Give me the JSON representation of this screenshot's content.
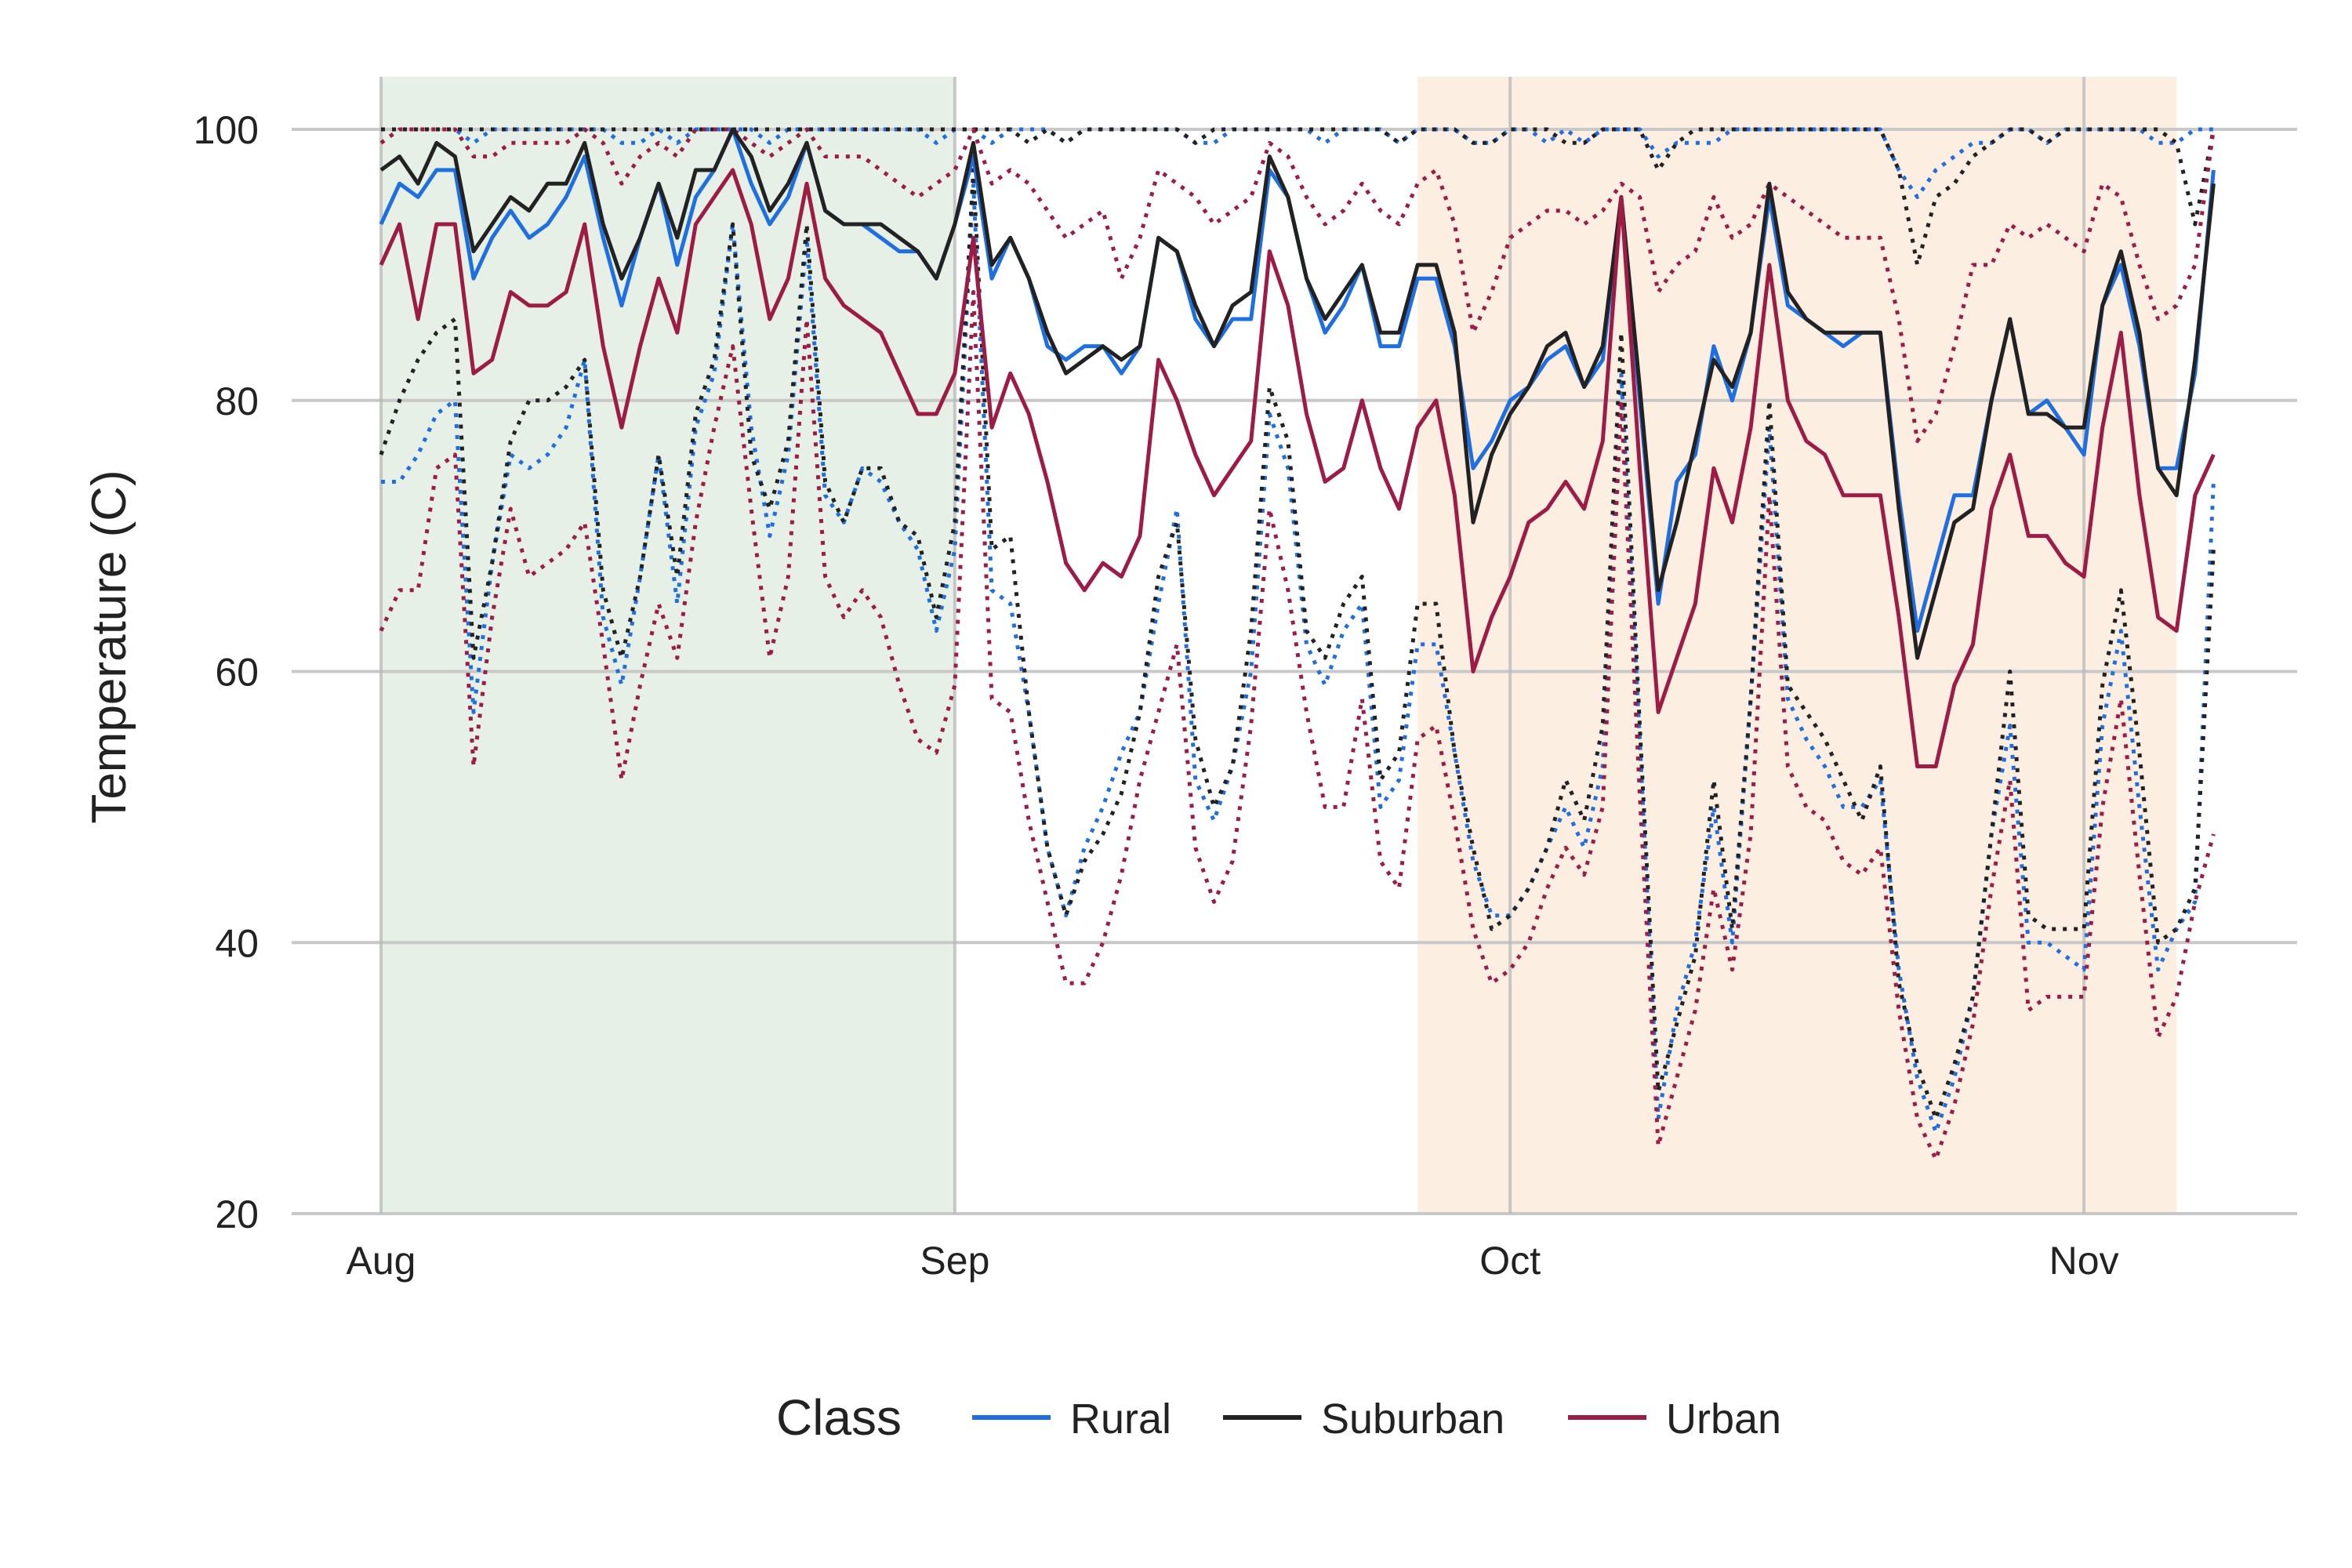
{
  "chart_data": {
    "type": "line",
    "title": "",
    "xlabel": "",
    "ylabel": "Temperature (C)",
    "ylim": [
      20,
      104
    ],
    "xlim": [
      "2023-08-01",
      "2023-11-07"
    ],
    "y_ticks": [
      20,
      40,
      60,
      80,
      100
    ],
    "x_ticks": [
      {
        "date": "2023-08-01",
        "label": "Aug"
      },
      {
        "date": "2023-09-01",
        "label": "Sep"
      },
      {
        "date": "2023-10-01",
        "label": "Oct"
      },
      {
        "date": "2023-11-01",
        "label": "Nov"
      }
    ],
    "grid": true,
    "legend": {
      "title": "Class",
      "placement": "bottom",
      "entries": [
        "Rural",
        "Suburban",
        "Urban"
      ]
    },
    "colors": {
      "Rural": "#1f6fe0",
      "Suburban": "#222222",
      "Urban": "#9c1c46",
      "band_1": "#e6f0e6",
      "band_2": "#fdeee2"
    },
    "bands": [
      {
        "start": "2023-08-01",
        "end": "2023-09-01",
        "color": "#e6f0e6"
      },
      {
        "start": "2023-09-26",
        "end": "2023-11-06",
        "color": "#fdeee2"
      }
    ],
    "x_start": "2023-08-01",
    "x_step_days": 1,
    "series": [
      {
        "name": "Rural",
        "stat": "mean",
        "values": [
          93,
          96,
          95,
          97,
          97,
          89,
          92,
          94,
          92,
          93,
          95,
          98,
          92,
          87,
          92,
          96,
          90,
          95,
          97,
          100,
          96,
          93,
          95,
          99,
          94,
          93,
          93,
          92,
          91,
          91,
          89,
          93,
          98,
          89,
          92,
          89,
          84,
          83,
          84,
          84,
          82,
          84,
          92,
          91,
          86,
          84,
          86,
          86,
          97,
          95,
          89,
          85,
          87,
          90,
          84,
          84,
          89,
          89,
          84,
          75,
          77,
          80,
          81,
          83,
          84,
          81,
          83,
          95,
          80,
          65,
          74,
          76,
          84,
          80,
          85,
          95,
          87,
          86,
          85,
          84,
          85,
          85,
          73,
          63,
          68,
          73,
          73,
          80,
          86,
          79,
          80,
          78,
          76,
          87,
          90,
          84,
          75,
          75,
          82,
          97
        ]
      },
      {
        "name": "Suburban",
        "stat": "mean",
        "values": [
          97,
          98,
          96,
          99,
          98,
          91,
          93,
          95,
          94,
          96,
          96,
          99,
          93,
          89,
          92,
          96,
          92,
          97,
          97,
          100,
          98,
          94,
          96,
          99,
          94,
          93,
          93,
          93,
          92,
          91,
          89,
          93,
          99,
          90,
          92,
          89,
          85,
          82,
          83,
          84,
          83,
          84,
          92,
          91,
          87,
          84,
          87,
          88,
          98,
          95,
          89,
          86,
          88,
          90,
          85,
          85,
          90,
          90,
          85,
          71,
          76,
          79,
          81,
          84,
          85,
          81,
          84,
          95,
          81,
          66,
          71,
          77,
          83,
          81,
          85,
          96,
          88,
          86,
          85,
          85,
          85,
          85,
          72,
          61,
          66,
          71,
          72,
          80,
          86,
          79,
          79,
          78,
          78,
          87,
          91,
          85,
          75,
          73,
          83,
          96
        ]
      },
      {
        "name": "Urban",
        "stat": "mean",
        "values": [
          90,
          93,
          86,
          93,
          93,
          82,
          83,
          88,
          87,
          87,
          88,
          93,
          84,
          78,
          84,
          89,
          85,
          93,
          95,
          97,
          93,
          86,
          89,
          96,
          89,
          87,
          86,
          85,
          82,
          79,
          79,
          82,
          92,
          78,
          82,
          79,
          74,
          68,
          66,
          68,
          67,
          70,
          83,
          80,
          76,
          73,
          75,
          77,
          91,
          87,
          79,
          74,
          75,
          80,
          75,
          72,
          78,
          80,
          73,
          60,
          64,
          67,
          71,
          72,
          74,
          72,
          77,
          95,
          75,
          57,
          61,
          65,
          75,
          71,
          78,
          90,
          80,
          77,
          76,
          73,
          73,
          73,
          64,
          53,
          53,
          59,
          62,
          72,
          76,
          70,
          70,
          68,
          67,
          78,
          85,
          73,
          64,
          63,
          73,
          76
        ]
      },
      {
        "name": "Rural",
        "stat": "max",
        "values": [
          100,
          100,
          100,
          100,
          100,
          99,
          100,
          100,
          100,
          100,
          100,
          100,
          100,
          99,
          99,
          100,
          99,
          100,
          100,
          100,
          100,
          99,
          100,
          100,
          100,
          100,
          100,
          100,
          100,
          100,
          99,
          100,
          100,
          99,
          100,
          100,
          100,
          99,
          100,
          100,
          100,
          100,
          100,
          100,
          99,
          99,
          100,
          100,
          100,
          100,
          100,
          99,
          100,
          100,
          100,
          99,
          100,
          100,
          100,
          99,
          99,
          100,
          100,
          99,
          100,
          99,
          100,
          100,
          100,
          98,
          99,
          99,
          99,
          100,
          100,
          100,
          100,
          100,
          100,
          100,
          100,
          100,
          97,
          95,
          97,
          98,
          99,
          99,
          100,
          100,
          99,
          100,
          100,
          100,
          100,
          100,
          99,
          99,
          100,
          100
        ]
      },
      {
        "name": "Suburban",
        "stat": "max",
        "values": [
          100,
          100,
          100,
          100,
          100,
          100,
          100,
          100,
          100,
          100,
          100,
          100,
          100,
          100,
          100,
          100,
          100,
          100,
          100,
          100,
          100,
          100,
          100,
          100,
          100,
          100,
          100,
          100,
          100,
          100,
          100,
          100,
          100,
          100,
          100,
          99,
          100,
          99,
          100,
          100,
          100,
          100,
          100,
          100,
          99,
          100,
          100,
          100,
          100,
          100,
          100,
          100,
          100,
          100,
          100,
          99,
          100,
          100,
          100,
          99,
          99,
          100,
          100,
          100,
          99,
          99,
          100,
          100,
          100,
          97,
          99,
          100,
          100,
          100,
          100,
          100,
          100,
          100,
          100,
          100,
          100,
          100,
          97,
          90,
          95,
          96,
          98,
          99,
          100,
          100,
          99,
          100,
          100,
          100,
          100,
          100,
          100,
          99,
          93,
          100
        ]
      },
      {
        "name": "Urban",
        "stat": "max",
        "values": [
          99,
          100,
          100,
          100,
          100,
          98,
          98,
          99,
          99,
          99,
          99,
          100,
          99,
          96,
          98,
          99,
          98,
          100,
          100,
          100,
          99,
          98,
          99,
          100,
          98,
          98,
          98,
          97,
          96,
          95,
          96,
          97,
          100,
          96,
          97,
          96,
          94,
          92,
          93,
          94,
          89,
          92,
          97,
          96,
          95,
          93,
          94,
          95,
          99,
          98,
          95,
          93,
          94,
          96,
          94,
          93,
          96,
          97,
          93,
          85,
          88,
          92,
          93,
          94,
          94,
          93,
          94,
          96,
          95,
          88,
          90,
          91,
          95,
          92,
          93,
          96,
          95,
          94,
          93,
          92,
          92,
          92,
          86,
          77,
          79,
          84,
          90,
          90,
          93,
          92,
          93,
          92,
          91,
          96,
          95,
          90,
          86,
          87,
          90,
          100
        ]
      },
      {
        "name": "Rural",
        "stat": "min",
        "values": [
          74,
          74,
          76,
          79,
          80,
          57,
          68,
          76,
          75,
          76,
          78,
          83,
          64,
          59,
          67,
          76,
          65,
          78,
          82,
          93,
          78,
          70,
          76,
          92,
          73,
          71,
          75,
          74,
          71,
          69,
          63,
          69,
          96,
          66,
          65,
          57,
          47,
          42,
          47,
          50,
          54,
          57,
          65,
          72,
          52,
          49,
          53,
          60,
          79,
          75,
          62,
          59,
          63,
          65,
          50,
          52,
          62,
          62,
          54,
          46,
          42,
          42,
          44,
          47,
          50,
          47,
          53,
          82,
          55,
          27,
          35,
          40,
          50,
          40,
          58,
          78,
          58,
          55,
          53,
          50,
          50,
          52,
          38,
          30,
          26,
          30,
          36,
          48,
          56,
          40,
          40,
          39,
          38,
          56,
          63,
          50,
          38,
          41,
          43,
          74
        ]
      },
      {
        "name": "Suburban",
        "stat": "min",
        "values": [
          76,
          80,
          83,
          85,
          86,
          61,
          68,
          77,
          80,
          80,
          81,
          83,
          66,
          61,
          67,
          76,
          67,
          79,
          83,
          93,
          76,
          72,
          77,
          93,
          74,
          71,
          75,
          75,
          71,
          70,
          64,
          71,
          97,
          69,
          70,
          57,
          47,
          42,
          46,
          48,
          51,
          57,
          67,
          71,
          55,
          50,
          53,
          63,
          81,
          77,
          63,
          61,
          65,
          67,
          52,
          54,
          65,
          65,
          54,
          47,
          41,
          42,
          44,
          47,
          52,
          49,
          56,
          85,
          56,
          29,
          34,
          39,
          52,
          41,
          58,
          80,
          59,
          57,
          55,
          52,
          49,
          53,
          37,
          31,
          27,
          31,
          36,
          48,
          60,
          42,
          41,
          41,
          41,
          59,
          66,
          54,
          40,
          41,
          44,
          69
        ]
      },
      {
        "name": "Urban",
        "stat": "min",
        "values": [
          63,
          66,
          66,
          75,
          76,
          53,
          64,
          72,
          67,
          68,
          69,
          71,
          62,
          52,
          59,
          65,
          61,
          71,
          78,
          84,
          72,
          61,
          67,
          86,
          67,
          64,
          66,
          64,
          59,
          55,
          54,
          59,
          88,
          58,
          57,
          49,
          43,
          37,
          37,
          40,
          45,
          52,
          57,
          62,
          47,
          43,
          46,
          56,
          72,
          66,
          57,
          50,
          50,
          58,
          46,
          44,
          55,
          56,
          49,
          41,
          37,
          38,
          40,
          44,
          47,
          45,
          50,
          80,
          51,
          25,
          30,
          35,
          44,
          38,
          48,
          73,
          53,
          50,
          49,
          46,
          45,
          47,
          35,
          27,
          24,
          28,
          34,
          44,
          52,
          35,
          36,
          36,
          36,
          50,
          58,
          45,
          33,
          36,
          43,
          48
        ]
      }
    ]
  }
}
